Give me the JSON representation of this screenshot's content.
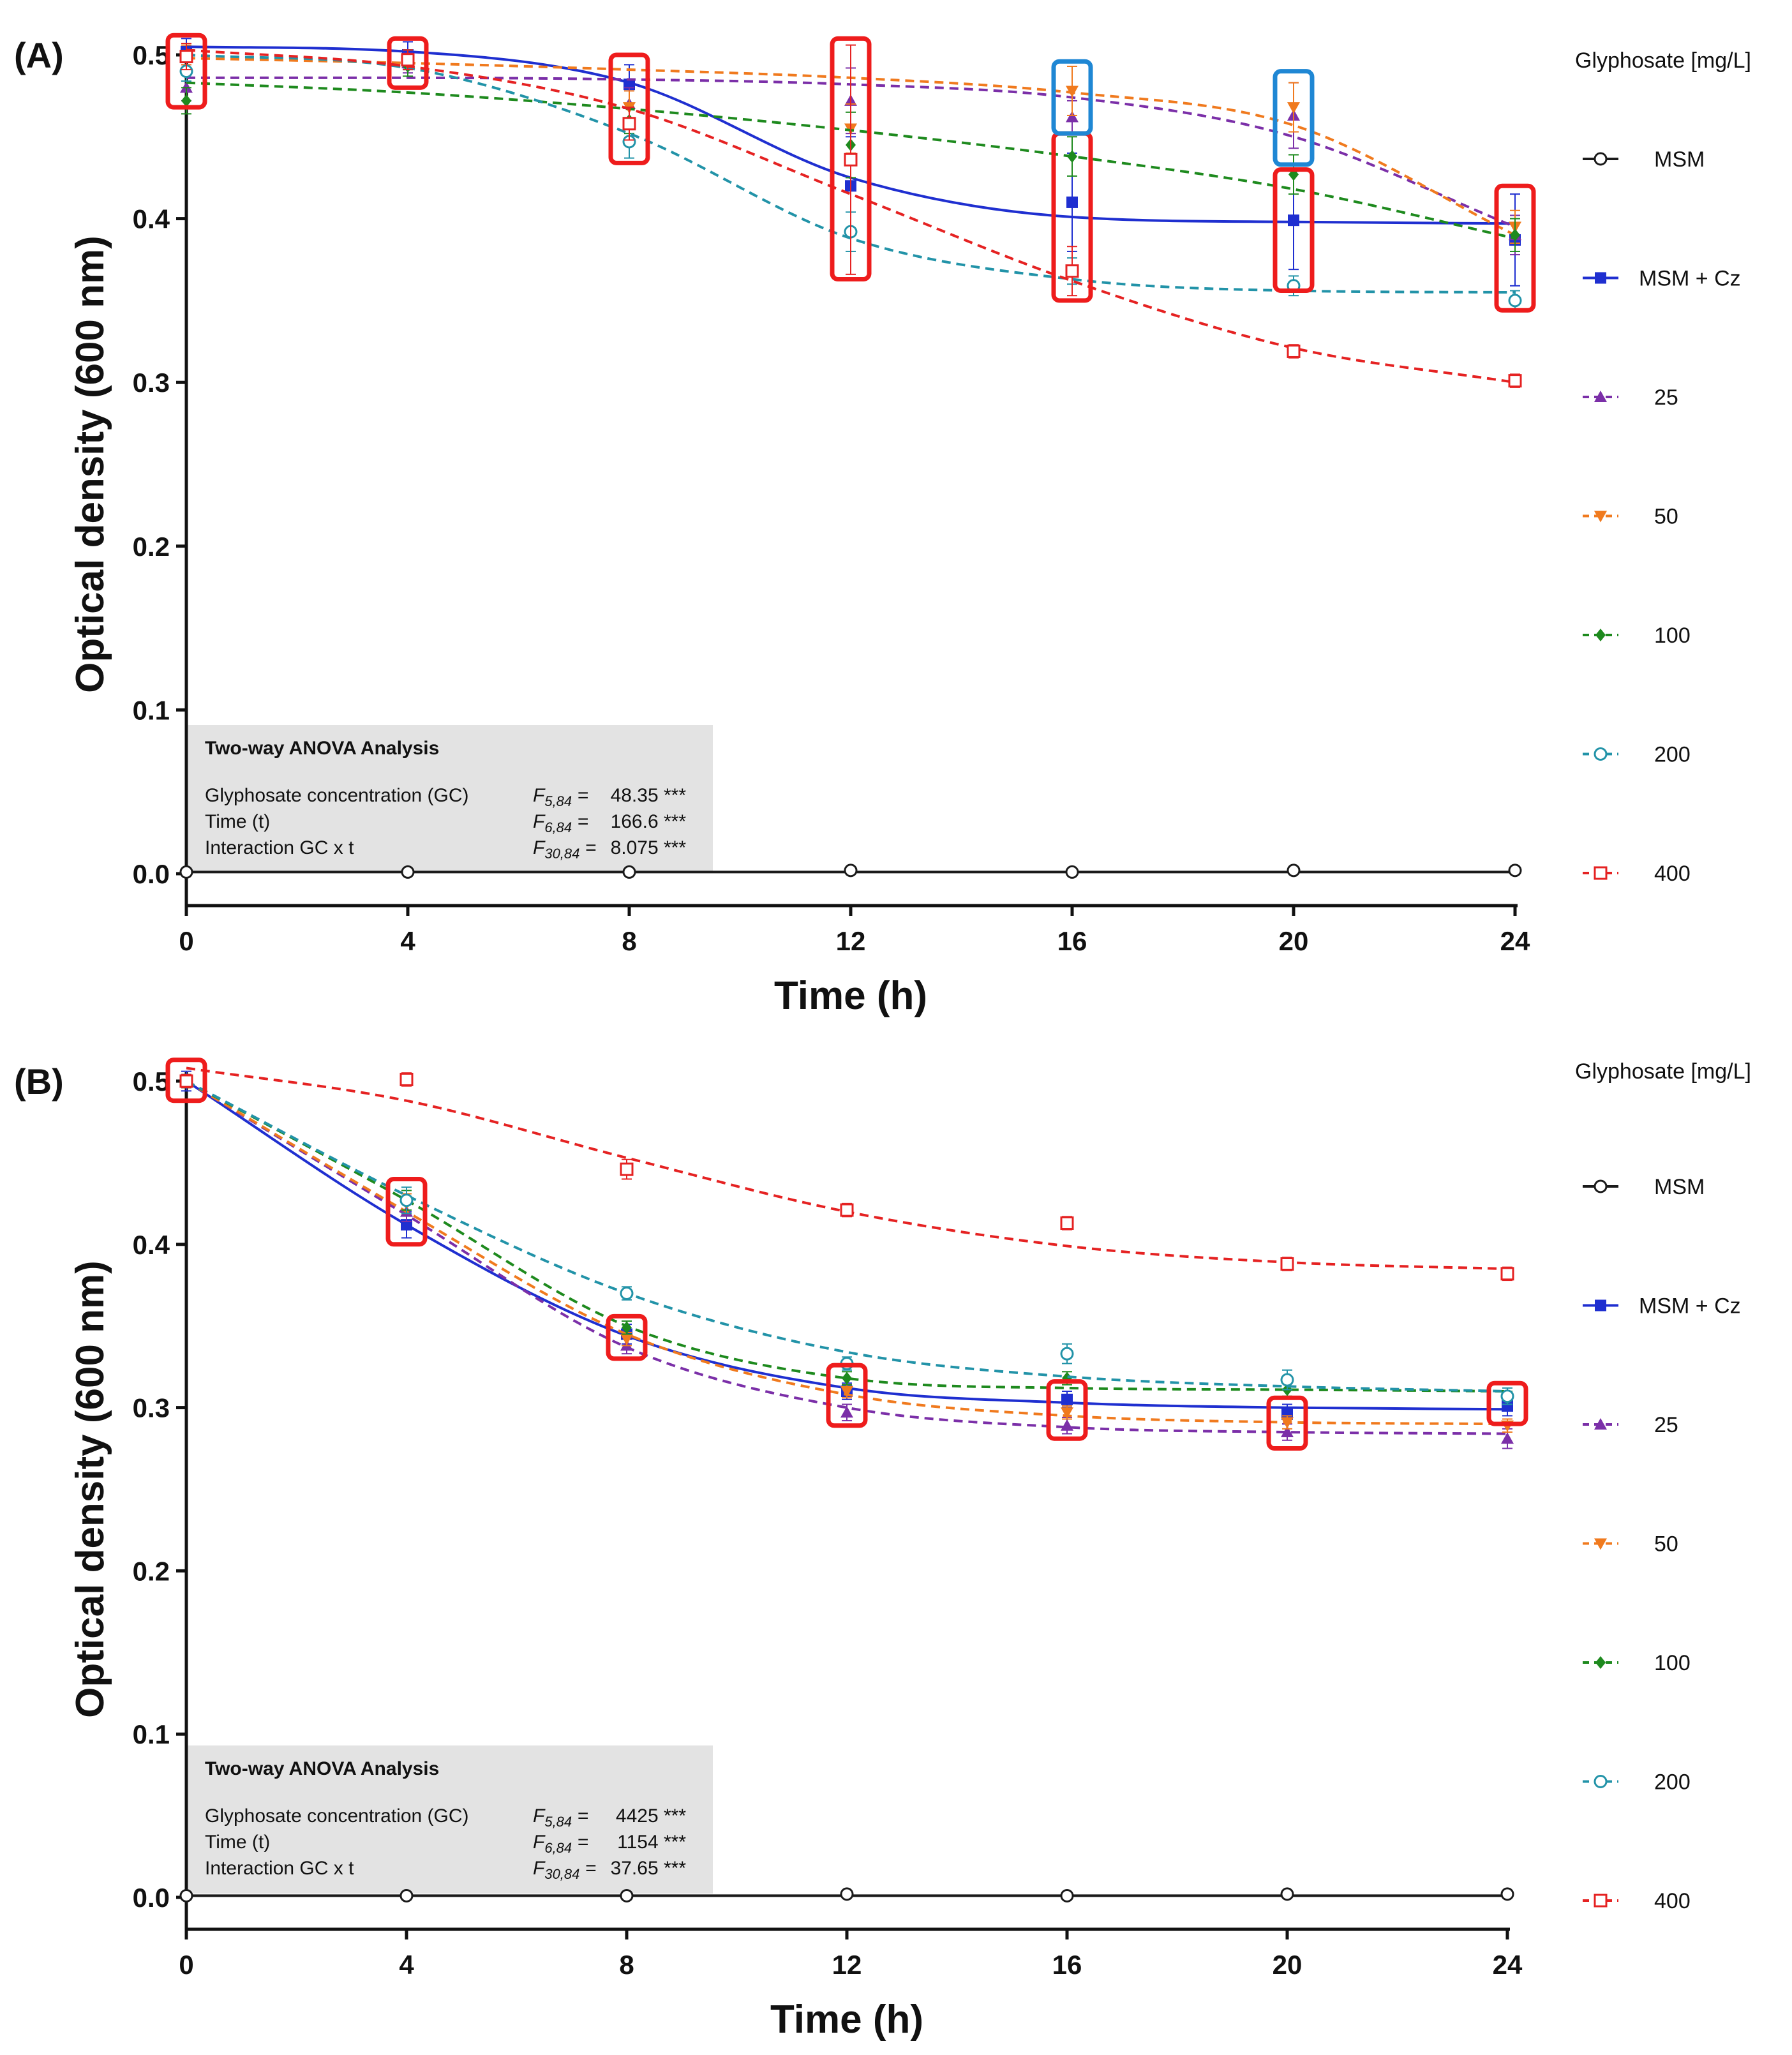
{
  "chart_data": [
    {
      "type": "line",
      "panel_label": "(A)",
      "xlabel": "Time (h)",
      "ylabel": "Optical density (600 nm)",
      "xlim": [
        0,
        24
      ],
      "ylim": [
        0,
        0.5
      ],
      "x_ticks": [
        "0",
        "4",
        "8",
        "12",
        "16",
        "20",
        "24"
      ],
      "y_ticks": [
        "0.0",
        "0.1",
        "0.2",
        "0.3",
        "0.4",
        "0.5"
      ],
      "legend": {
        "title": "Glyphosate [mg/L]",
        "placement": "right"
      },
      "x": [
        0,
        4,
        8,
        12,
        16,
        20,
        24
      ],
      "series": [
        {
          "name": "MSM",
          "color": "#1a1a1a",
          "marker": "circle-open",
          "line": "solid",
          "values": [
            0.001,
            0.001,
            0.001,
            0.002,
            0.001,
            0.002,
            0.002
          ],
          "fit": [
            0.001,
            0.001,
            0.001,
            0.001,
            0.001,
            0.001,
            0.001
          ]
        },
        {
          "name": "MSM + Cz",
          "color": "#1f2fd0",
          "marker": "square-filled",
          "line": "solid",
          "values": [
            0.502,
            0.5,
            0.482,
            0.42,
            0.41,
            0.399,
            0.387
          ],
          "fit": [
            0.505,
            0.502,
            0.483,
            0.425,
            0.401,
            0.398,
            0.397
          ],
          "errors": [
            0.008,
            0.008,
            0.012,
            0.03,
            0.03,
            0.03,
            0.028
          ]
        },
        {
          "name": "25",
          "color": "#7b2fa8",
          "marker": "triangle-up",
          "line": "dashed",
          "values": [
            0.48,
            0.495,
            0.47,
            0.472,
            0.462,
            0.463,
            0.39
          ],
          "fit": [
            0.486,
            0.486,
            0.485,
            0.482,
            0.474,
            0.45,
            0.395
          ],
          "errors": [
            0.008,
            0.006,
            0.01,
            0.02,
            0.01,
            0.02,
            0.012
          ]
        },
        {
          "name": "50",
          "color": "#f07a1e",
          "marker": "triangle-down",
          "line": "dashed",
          "values": [
            0.5,
            0.497,
            0.468,
            0.455,
            0.478,
            0.468,
            0.395
          ],
          "fit": [
            0.498,
            0.495,
            0.491,
            0.486,
            0.477,
            0.457,
            0.39
          ],
          "errors": [
            0.006,
            0.006,
            0.01,
            0.015,
            0.015,
            0.015,
            0.01
          ]
        },
        {
          "name": "100",
          "color": "#1e8a1e",
          "marker": "diamond",
          "line": "dashed",
          "values": [
            0.472,
            0.493,
            0.46,
            0.445,
            0.438,
            0.427,
            0.39
          ],
          "fit": [
            0.483,
            0.477,
            0.467,
            0.454,
            0.438,
            0.418,
            0.388
          ],
          "errors": [
            0.008,
            0.006,
            0.008,
            0.02,
            0.012,
            0.012,
            0.01
          ]
        },
        {
          "name": "200",
          "color": "#2293a8",
          "marker": "circle-open",
          "line": "dashed",
          "values": [
            0.49,
            0.497,
            0.447,
            0.392,
            0.368,
            0.359,
            0.35
          ],
          "fit": [
            0.5,
            0.492,
            0.452,
            0.388,
            0.363,
            0.356,
            0.355
          ],
          "errors": [
            0.006,
            0.006,
            0.01,
            0.012,
            0.008,
            0.006,
            0.006
          ]
        },
        {
          "name": "400",
          "color": "#e52222",
          "marker": "square-open",
          "line": "dashed",
          "values": [
            0.499,
            0.497,
            0.458,
            0.436,
            0.368,
            0.319,
            0.301
          ],
          "fit": [
            0.503,
            0.493,
            0.467,
            0.415,
            0.362,
            0.321,
            0.3
          ],
          "errors": [
            0.008,
            0.006,
            0.01,
            0.07,
            0.015,
            0.004,
            0.004
          ]
        }
      ],
      "highlight_boxes": [
        {
          "x": 0,
          "y_low": 0.468,
          "y_high": 0.512,
          "color": "#ee1c1c"
        },
        {
          "x": 4,
          "y_low": 0.48,
          "y_high": 0.51,
          "color": "#ee1c1c"
        },
        {
          "x": 8,
          "y_low": 0.434,
          "y_high": 0.5,
          "color": "#ee1c1c"
        },
        {
          "x": 12,
          "y_low": 0.363,
          "y_high": 0.51,
          "color": "#ee1c1c"
        },
        {
          "x": 16,
          "y_low": 0.35,
          "y_high": 0.452,
          "color": "#ee1c1c"
        },
        {
          "x": 20,
          "y_low": 0.356,
          "y_high": 0.43,
          "color": "#ee1c1c"
        },
        {
          "x": 24,
          "y_low": 0.344,
          "y_high": 0.42,
          "color": "#ee1c1c"
        },
        {
          "x": 16,
          "y_low": 0.452,
          "y_high": 0.496,
          "color": "#1f87d4"
        },
        {
          "x": 20,
          "y_low": 0.433,
          "y_high": 0.49,
          "color": "#1f87d4"
        }
      ],
      "anova": {
        "title": "Two-way ANOVA Analysis",
        "rows": [
          {
            "label": "Glyphosate concentration (GC)",
            "f": "F",
            "df": "5,84",
            "value": "48.35 ***"
          },
          {
            "label": "Time (t)",
            "f": "F",
            "df": "6,84",
            "value": "166.6 ***"
          },
          {
            "label": "Interaction GC x t",
            "f": "F",
            "df": "30,84",
            "value": "8.075 ***"
          }
        ]
      }
    },
    {
      "type": "line",
      "panel_label": "(B)",
      "xlabel": "Time (h)",
      "ylabel": "Optical density (600 nm)",
      "xlim": [
        0,
        24
      ],
      "ylim": [
        0,
        0.5
      ],
      "x_ticks": [
        "0",
        "4",
        "8",
        "12",
        "16",
        "20",
        "24"
      ],
      "y_ticks": [
        "0.0",
        "0.1",
        "0.2",
        "0.3",
        "0.4",
        "0.5"
      ],
      "legend": {
        "title": "Glyphosate [mg/L]",
        "placement": "right"
      },
      "x": [
        0,
        4,
        8,
        12,
        16,
        20,
        24
      ],
      "series": [
        {
          "name": "MSM",
          "color": "#1a1a1a",
          "marker": "circle-open",
          "line": "solid",
          "values": [
            0.001,
            0.001,
            0.001,
            0.002,
            0.001,
            0.002,
            0.002
          ],
          "fit": [
            0.001,
            0.001,
            0.001,
            0.001,
            0.001,
            0.001,
            0.001
          ]
        },
        {
          "name": "MSM + Cz",
          "color": "#1f2fd0",
          "marker": "square-filled",
          "line": "solid",
          "values": [
            0.5,
            0.412,
            0.345,
            0.31,
            0.305,
            0.296,
            0.301
          ],
          "fit": [
            0.5,
            0.412,
            0.344,
            0.312,
            0.303,
            0.3,
            0.299
          ],
          "errors": [
            0.006,
            0.008,
            0.006,
            0.005,
            0.005,
            0.006,
            0.006
          ]
        },
        {
          "name": "25",
          "color": "#7b2fa8",
          "marker": "triangle-up",
          "line": "dashed",
          "values": [
            0.5,
            0.42,
            0.338,
            0.297,
            0.289,
            0.285,
            0.281
          ],
          "fit": [
            0.5,
            0.418,
            0.337,
            0.3,
            0.288,
            0.285,
            0.284
          ],
          "errors": [
            0.004,
            0.006,
            0.005,
            0.005,
            0.005,
            0.005,
            0.006
          ]
        },
        {
          "name": "50",
          "color": "#f07a1e",
          "marker": "triangle-down",
          "line": "dashed",
          "values": [
            0.5,
            0.425,
            0.342,
            0.31,
            0.297,
            0.291,
            0.289
          ],
          "fit": [
            0.5,
            0.42,
            0.345,
            0.308,
            0.295,
            0.291,
            0.29
          ],
          "errors": [
            0.004,
            0.006,
            0.004,
            0.004,
            0.004,
            0.004,
            0.004
          ]
        },
        {
          "name": "100",
          "color": "#1e8a1e",
          "marker": "diamond",
          "line": "dashed",
          "values": [
            0.5,
            0.427,
            0.349,
            0.318,
            0.318,
            0.311,
            0.306
          ],
          "fit": [
            0.5,
            0.427,
            0.35,
            0.318,
            0.312,
            0.311,
            0.31
          ],
          "errors": [
            0.004,
            0.006,
            0.004,
            0.004,
            0.004,
            0.004,
            0.004
          ]
        },
        {
          "name": "200",
          "color": "#2293a8",
          "marker": "circle-open",
          "line": "dashed",
          "values": [
            0.5,
            0.427,
            0.37,
            0.327,
            0.333,
            0.317,
            0.307
          ],
          "fit": [
            0.5,
            0.43,
            0.37,
            0.334,
            0.319,
            0.313,
            0.31
          ],
          "errors": [
            0.004,
            0.008,
            0.004,
            0.004,
            0.006,
            0.006,
            0.005
          ]
        },
        {
          "name": "400",
          "color": "#e52222",
          "marker": "square-open",
          "line": "dashed",
          "values": [
            0.5,
            0.501,
            0.446,
            0.421,
            0.413,
            0.388,
            0.382
          ],
          "fit": [
            0.508,
            0.488,
            0.453,
            0.42,
            0.399,
            0.389,
            0.385
          ],
          "errors": [
            0.004,
            0.004,
            0.006,
            0.004,
            0.004,
            0.004,
            0.004
          ]
        }
      ],
      "highlight_boxes": [
        {
          "x": 0,
          "y_low": 0.488,
          "y_high": 0.513,
          "color": "#ee1c1c"
        },
        {
          "x": 4,
          "y_low": 0.4,
          "y_high": 0.44,
          "color": "#ee1c1c"
        },
        {
          "x": 8,
          "y_low": 0.33,
          "y_high": 0.356,
          "color": "#ee1c1c"
        },
        {
          "x": 12,
          "y_low": 0.289,
          "y_high": 0.326,
          "color": "#ee1c1c"
        },
        {
          "x": 16,
          "y_low": 0.281,
          "y_high": 0.316,
          "color": "#ee1c1c"
        },
        {
          "x": 20,
          "y_low": 0.275,
          "y_high": 0.306,
          "color": "#ee1c1c"
        },
        {
          "x": 24,
          "y_low": 0.29,
          "y_high": 0.315,
          "color": "#ee1c1c"
        }
      ],
      "anova": {
        "title": "Two-way ANOVA Analysis",
        "rows": [
          {
            "label": "Glyphosate concentration (GC)",
            "f": "F",
            "df": "5,84",
            "value": "4425 ***"
          },
          {
            "label": "Time (t)",
            "f": "F",
            "df": "6,84",
            "value": "1154 ***"
          },
          {
            "label": "Interaction GC x t",
            "f": "F",
            "df": "30,84",
            "value": "37.65 ***"
          }
        ]
      }
    }
  ]
}
